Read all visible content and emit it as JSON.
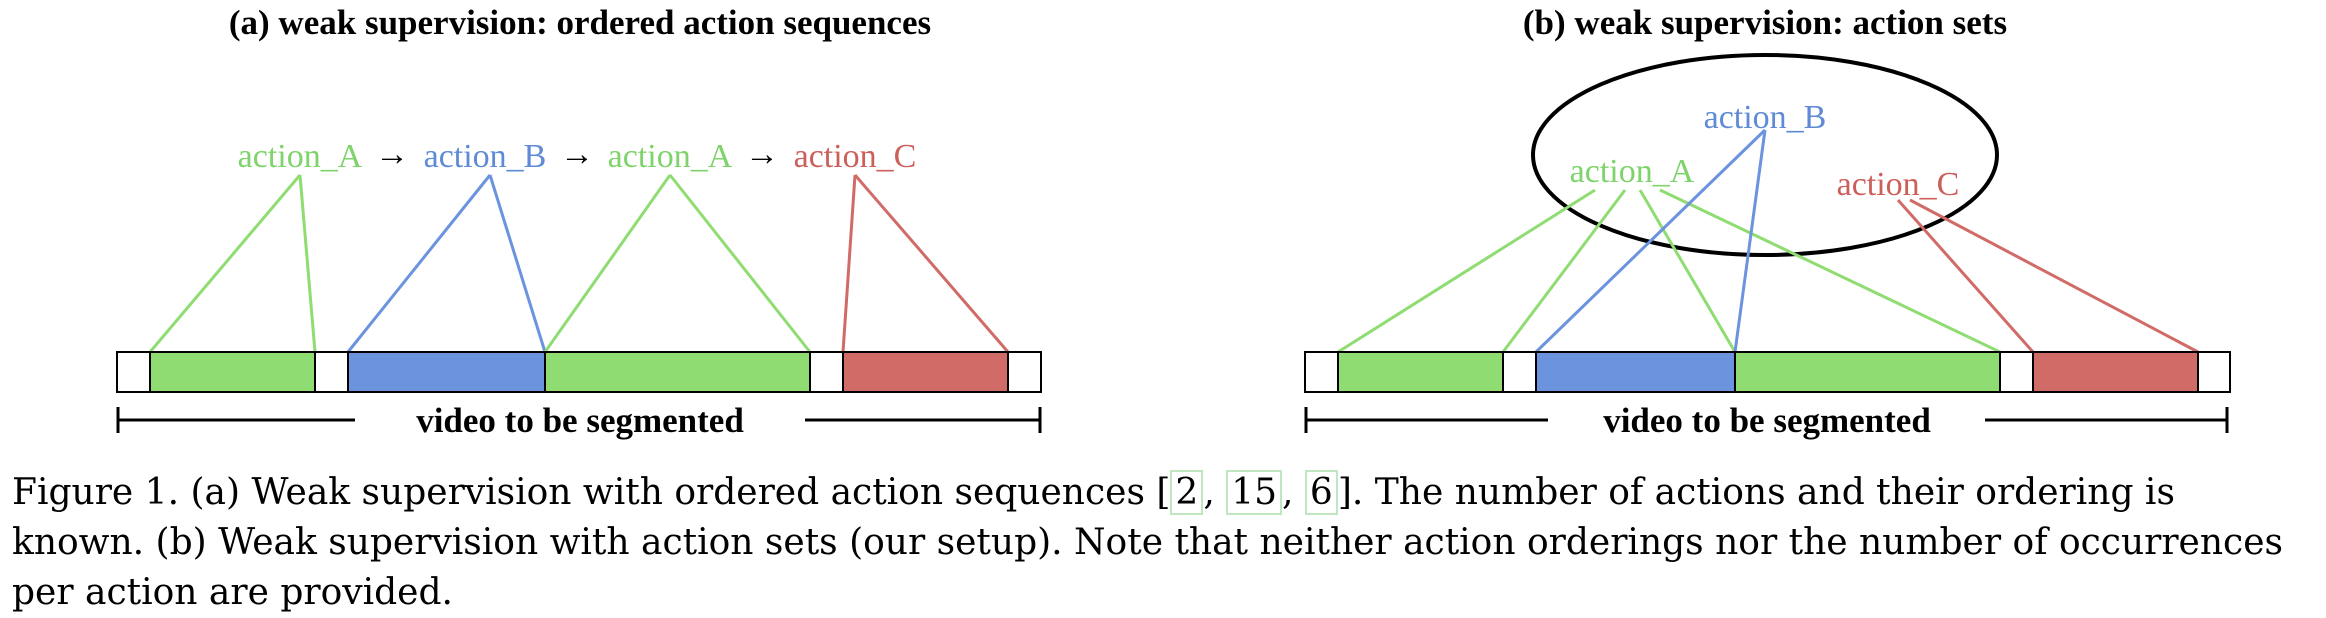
{
  "colors": {
    "green": "#8fdd72",
    "blue": "#6b93de",
    "red": "#d16b67",
    "green_text": "#7ed36a",
    "blue_text": "#5f8ad6",
    "red_text": "#cd5f5b",
    "white": "#ffffff",
    "black": "#000000"
  },
  "panels": [
    {
      "title": "(a) weak supervision: ordered action sequences",
      "labels": [
        {
          "text": "action_A",
          "color": "green"
        },
        {
          "text": "action_B",
          "color": "blue"
        },
        {
          "text": "action_A",
          "color": "green"
        },
        {
          "text": "action_C",
          "color": "red"
        }
      ],
      "arrow": "→",
      "bar": [
        {
          "color": "white"
        },
        {
          "color": "green"
        },
        {
          "color": "white"
        },
        {
          "color": "blue"
        },
        {
          "color": "green"
        },
        {
          "color": "white"
        },
        {
          "color": "red"
        },
        {
          "color": "white"
        }
      ],
      "axis_label": "video to be segmented"
    },
    {
      "title": "(b) weak supervision: action sets",
      "labels": [
        {
          "text": "action_B",
          "color": "blue"
        },
        {
          "text": "action_A",
          "color": "green"
        },
        {
          "text": "action_C",
          "color": "red"
        }
      ],
      "bar": [
        {
          "color": "white"
        },
        {
          "color": "green"
        },
        {
          "color": "white"
        },
        {
          "color": "blue"
        },
        {
          "color": "green"
        },
        {
          "color": "white"
        },
        {
          "color": "red"
        },
        {
          "color": "white"
        }
      ],
      "axis_label": "video to be segmented"
    }
  ],
  "caption": {
    "part1": "Figure 1. (a) Weak supervision with ordered action sequences  [",
    "ref1": "2",
    "sep1": ", ",
    "ref2": "15",
    "sep2": ", ",
    "ref3": "6",
    "part2": "]. The number of actions and their ordering is known. (b) Weak supervision with action sets (our setup). Note that neither action orderings nor the number of occurrences per action are provided."
  }
}
